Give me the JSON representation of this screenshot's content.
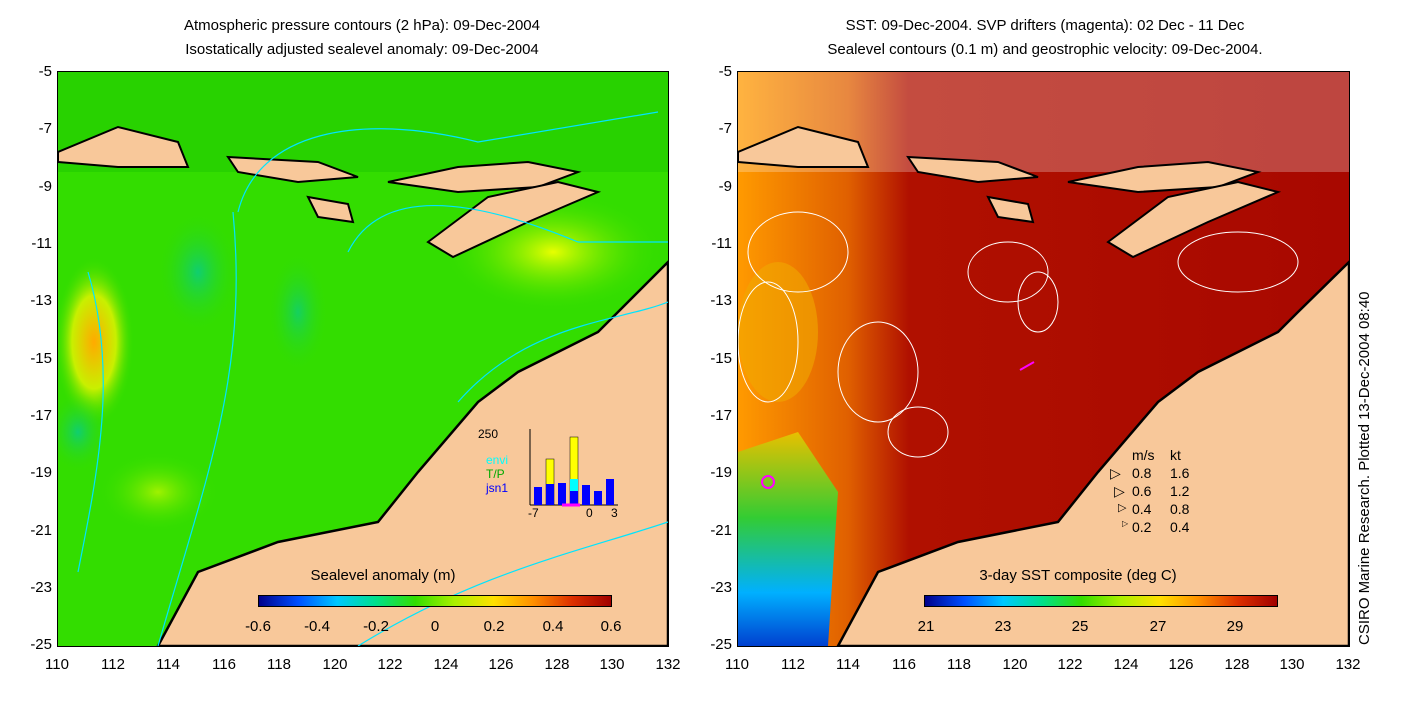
{
  "left_panel": {
    "title_line1": "Atmospheric pressure contours (2 hPa): 09-Dec-2004",
    "title_line2": "Isostatically adjusted sealevel anomaly: 09-Dec-2004",
    "colorbar_title": "Sealevel anomaly (m)",
    "colorbar_labels": [
      "-0.6",
      "-0.4",
      "-0.2",
      "0",
      "0.2",
      "0.4",
      "0.6"
    ],
    "inset": {
      "ymax_label": "250",
      "series": [
        "envi",
        "T/P",
        "jsn1"
      ],
      "series_colors": [
        "#00ffff",
        "#00cc00",
        "#0000ff"
      ],
      "extra_color": "#ffff00",
      "x_labels": [
        "-7",
        "0",
        "3"
      ]
    }
  },
  "right_panel": {
    "title_line1": "SST: 09-Dec-2004. SVP drifters (magenta): 02 Dec - 11 Dec",
    "title_line2": "Sealevel contours (0.1 m) and geostrophic velocity: 09-Dec-2004.",
    "colorbar_title": "3-day SST composite (deg C)",
    "colorbar_labels": [
      "21",
      "23",
      "25",
      "27",
      "29"
    ],
    "velocity_legend": {
      "header_ms": "m/s",
      "header_kt": "kt",
      "rows": [
        {
          "ms": "0.8",
          "kt": "1.6"
        },
        {
          "ms": "0.6",
          "kt": "1.2"
        },
        {
          "ms": "0.4",
          "kt": "0.8"
        },
        {
          "ms": "0.2",
          "kt": "0.4"
        }
      ]
    }
  },
  "y_ticks": [
    "-5",
    "-7",
    "-9",
    "-11",
    "-13",
    "-15",
    "-17",
    "-19",
    "-21",
    "-23",
    "-25"
  ],
  "x_ticks": [
    "110",
    "112",
    "114",
    "116",
    "118",
    "120",
    "122",
    "124",
    "126",
    "128",
    "130",
    "132"
  ],
  "credit": "CSIRO Marine Research. Plotted 13-Dec-2004 08:40",
  "colors": {
    "land": "#f8c89a",
    "ocean_anomaly": "#33dd00",
    "sst_warm": "#b01000",
    "contour_cyan": "#00e5ff",
    "drifter": "#ff00ff"
  }
}
